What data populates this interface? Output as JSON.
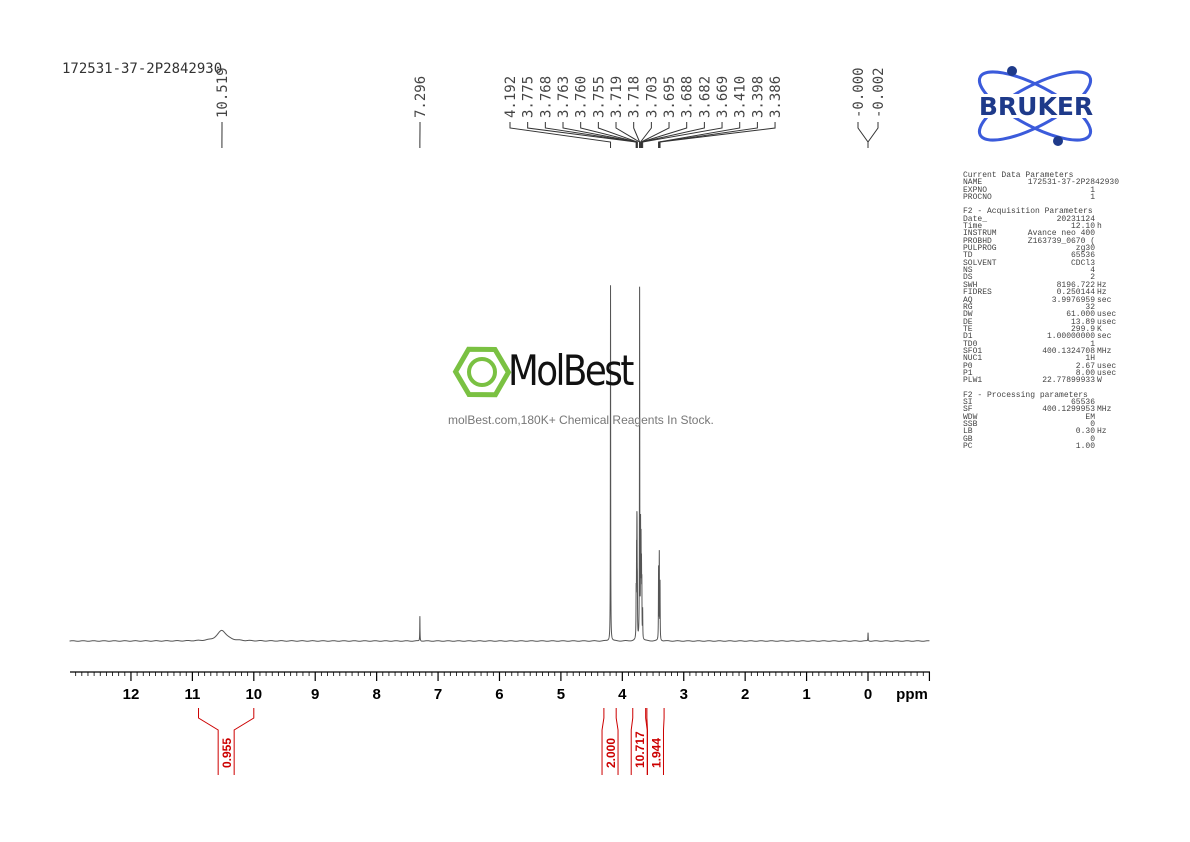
{
  "sample_name": "172531-37-2P2842930",
  "logo": {
    "text": "BRUKER",
    "color": "#1e3a8a",
    "accent": "#3b5bdb"
  },
  "watermark": {
    "brand": "MolBest",
    "tagline": "molBest.com,180K+ Chemical Reagents In Stock.",
    "color": "#7ac142"
  },
  "colors": {
    "spectrum": "#555555",
    "integral": "#cc0000",
    "axis": "#000000"
  },
  "parameters": {
    "current": {
      "title": "Current Data Parameters",
      "rows": [
        [
          "NAME",
          "172531-37-2P2842930",
          ""
        ],
        [
          "EXPNO",
          "1",
          ""
        ],
        [
          "PROCNO",
          "1",
          ""
        ]
      ]
    },
    "acquisition": {
      "title": "F2 - Acquisition Parameters",
      "rows": [
        [
          "Date_",
          "20231124",
          ""
        ],
        [
          "Time",
          "12.10",
          "h"
        ],
        [
          "INSTRUM",
          "Avance neo 400",
          ""
        ],
        [
          "PROBHD",
          "Z163739_0670 (",
          ""
        ],
        [
          "PULPROG",
          "zg30",
          ""
        ],
        [
          "TD",
          "65536",
          ""
        ],
        [
          "SOLVENT",
          "CDCl3",
          ""
        ],
        [
          "NS",
          "4",
          ""
        ],
        [
          "DS",
          "2",
          ""
        ],
        [
          "SWH",
          "8196.722",
          "Hz"
        ],
        [
          "FIDRES",
          "0.250144",
          "Hz"
        ],
        [
          "AQ",
          "3.9976959",
          "sec"
        ],
        [
          "RG",
          "32",
          ""
        ],
        [
          "DW",
          "61.000",
          "usec"
        ],
        [
          "DE",
          "13.89",
          "usec"
        ],
        [
          "TE",
          "299.9",
          "K"
        ],
        [
          "D1",
          "1.00000000",
          "sec"
        ],
        [
          "TD0",
          "1",
          ""
        ],
        [
          "SFO1",
          "400.1324708",
          "MHz"
        ],
        [
          "NUC1",
          "1H",
          ""
        ],
        [
          "P0",
          "2.67",
          "usec"
        ],
        [
          "P1",
          "8.00",
          "usec"
        ],
        [
          "PLW1",
          "22.77899933",
          "W"
        ]
      ]
    },
    "processing": {
      "title": "F2 - Processing parameters",
      "rows": [
        [
          "SI",
          "65536",
          ""
        ],
        [
          "SF",
          "400.1299953",
          "MHz"
        ],
        [
          "WDW",
          "EM",
          ""
        ],
        [
          "SSB",
          "0",
          ""
        ],
        [
          "LB",
          "0.30",
          "Hz"
        ],
        [
          "GB",
          "0",
          ""
        ],
        [
          "PC",
          "1.00",
          ""
        ]
      ]
    }
  },
  "chart_data": {
    "type": "line",
    "xlabel": "ppm",
    "xlim": [
      13,
      -1
    ],
    "x_reversed": true,
    "x_ticks": [
      "12",
      "11",
      "10",
      "9",
      "8",
      "7",
      "6",
      "5",
      "4",
      "3",
      "2",
      "1",
      "0"
    ],
    "peak_label_groups": [
      {
        "labels": [
          "10.519"
        ]
      },
      {
        "labels": [
          "7.296"
        ]
      },
      {
        "labels": [
          "4.192",
          "3.775",
          "3.768",
          "3.763",
          "3.760",
          "3.755",
          "3.719",
          "3.718",
          "3.703",
          "3.695",
          "3.688",
          "3.682",
          "3.669",
          "3.410",
          "3.398",
          "3.386"
        ]
      },
      {
        "labels": [
          "-0.000",
          "-0.002"
        ]
      }
    ],
    "peaks": [
      {
        "ppm": 10.519,
        "intensity": 0.03
      },
      {
        "ppm": 7.296,
        "intensity": 0.07
      },
      {
        "ppm": 4.192,
        "intensity": 1.0
      },
      {
        "ppm": 3.775,
        "intensity": 0.12
      },
      {
        "ppm": 3.768,
        "intensity": 0.2
      },
      {
        "ppm": 3.763,
        "intensity": 0.22
      },
      {
        "ppm": 3.76,
        "intensity": 0.2
      },
      {
        "ppm": 3.755,
        "intensity": 0.12
      },
      {
        "ppm": 3.719,
        "intensity": 0.55
      },
      {
        "ppm": 3.718,
        "intensity": 0.5
      },
      {
        "ppm": 3.703,
        "intensity": 0.3
      },
      {
        "ppm": 3.695,
        "intensity": 0.25
      },
      {
        "ppm": 3.688,
        "intensity": 0.18
      },
      {
        "ppm": 3.682,
        "intensity": 0.14
      },
      {
        "ppm": 3.669,
        "intensity": 0.08
      },
      {
        "ppm": 3.41,
        "intensity": 0.2
      },
      {
        "ppm": 3.398,
        "intensity": 0.24
      },
      {
        "ppm": 3.386,
        "intensity": 0.16
      },
      {
        "ppm": 0.0,
        "intensity": 0.015
      },
      {
        "ppm": -0.002,
        "intensity": 0.012
      }
    ],
    "integrals": [
      {
        "from": 10.9,
        "to": 10.0,
        "value": "0.955"
      },
      {
        "from": 4.3,
        "to": 4.1,
        "value": "2.000"
      },
      {
        "from": 3.83,
        "to": 3.62,
        "value": "10.717"
      },
      {
        "from": 3.6,
        "to": 3.32,
        "value": "1.944"
      }
    ]
  }
}
